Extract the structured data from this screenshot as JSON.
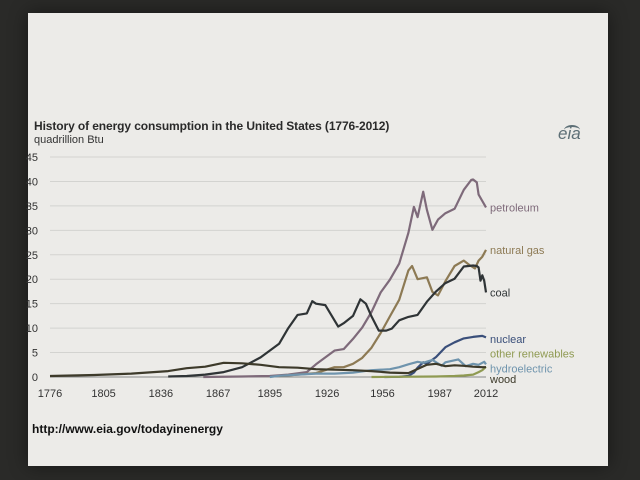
{
  "slide": {
    "logo_text": "eia",
    "url": "http://www.eia.gov/todayinenergy"
  },
  "colors": {
    "petroleum": "#7e6a7a",
    "natural_gas": "#8d7a54",
    "coal": "#2f3436",
    "nuclear": "#3a4f7a",
    "other_renewables": "#8f9a52",
    "hydroelectric": "#6f94ad",
    "wood": "#3d3a2a",
    "grid": "#d3d3d0"
  },
  "chart_data": {
    "type": "line",
    "title": "History of energy consumption in the United States (1776-2012)",
    "ylabel": "quadrillion Btu",
    "xlabel": "",
    "xlim": [
      1776,
      2012
    ],
    "ylim": [
      0,
      45
    ],
    "grid": true,
    "x_ticks": [
      "1776",
      "1805",
      "1836",
      "1867",
      "1895",
      "1926",
      "1956",
      "1987",
      "2012"
    ],
    "y_ticks": [
      "0",
      "5",
      "10",
      "15",
      "20",
      "25",
      "30",
      "35",
      "40",
      "45"
    ],
    "series": [
      {
        "name": "petroleum",
        "color_key": "petroleum",
        "points": [
          [
            1859,
            0
          ],
          [
            1880,
            0.1
          ],
          [
            1895,
            0.2
          ],
          [
            1905,
            0.5
          ],
          [
            1915,
            1.0
          ],
          [
            1920,
            2.6
          ],
          [
            1930,
            5.4
          ],
          [
            1935,
            5.7
          ],
          [
            1940,
            7.8
          ],
          [
            1945,
            10.1
          ],
          [
            1950,
            13.3
          ],
          [
            1955,
            17.3
          ],
          [
            1960,
            19.9
          ],
          [
            1965,
            23.2
          ],
          [
            1970,
            29.5
          ],
          [
            1973,
            34.8
          ],
          [
            1975,
            32.7
          ],
          [
            1978,
            37.9
          ],
          [
            1980,
            34.2
          ],
          [
            1983,
            30.1
          ],
          [
            1986,
            32.2
          ],
          [
            1990,
            33.5
          ],
          [
            1995,
            34.4
          ],
          [
            2000,
            38.3
          ],
          [
            2004,
            40.3
          ],
          [
            2005,
            40.4
          ],
          [
            2007,
            39.8
          ],
          [
            2008,
            37.3
          ],
          [
            2010,
            36.0
          ],
          [
            2012,
            34.7
          ]
        ]
      },
      {
        "name": "natural gas",
        "color_key": "natural_gas",
        "points": [
          [
            1900,
            0.2
          ],
          [
            1910,
            0.5
          ],
          [
            1920,
            0.8
          ],
          [
            1930,
            2.0
          ],
          [
            1935,
            2.0
          ],
          [
            1940,
            2.7
          ],
          [
            1945,
            3.9
          ],
          [
            1950,
            6.0
          ],
          [
            1955,
            9.0
          ],
          [
            1960,
            12.4
          ],
          [
            1965,
            15.8
          ],
          [
            1970,
            21.8
          ],
          [
            1972,
            22.7
          ],
          [
            1975,
            20.0
          ],
          [
            1980,
            20.4
          ],
          [
            1983,
            17.4
          ],
          [
            1986,
            16.7
          ],
          [
            1990,
            19.6
          ],
          [
            1995,
            22.7
          ],
          [
            2000,
            23.8
          ],
          [
            2003,
            22.9
          ],
          [
            2006,
            22.2
          ],
          [
            2008,
            23.8
          ],
          [
            2010,
            24.6
          ],
          [
            2012,
            26.0
          ]
        ]
      },
      {
        "name": "coal",
        "color_key": "coal",
        "points": [
          [
            1840,
            0.1
          ],
          [
            1850,
            0.2
          ],
          [
            1860,
            0.5
          ],
          [
            1870,
            1.0
          ],
          [
            1880,
            2.0
          ],
          [
            1890,
            4.0
          ],
          [
            1900,
            6.8
          ],
          [
            1905,
            10.0
          ],
          [
            1910,
            12.7
          ],
          [
            1915,
            13.0
          ],
          [
            1918,
            15.5
          ],
          [
            1920,
            15.0
          ],
          [
            1925,
            14.7
          ],
          [
            1932,
            10.3
          ],
          [
            1935,
            11.0
          ],
          [
            1940,
            12.5
          ],
          [
            1944,
            15.9
          ],
          [
            1947,
            15.0
          ],
          [
            1950,
            12.4
          ],
          [
            1954,
            9.5
          ],
          [
            1958,
            9.5
          ],
          [
            1961,
            9.9
          ],
          [
            1965,
            11.6
          ],
          [
            1970,
            12.3
          ],
          [
            1975,
            12.7
          ],
          [
            1980,
            15.4
          ],
          [
            1985,
            17.5
          ],
          [
            1990,
            19.2
          ],
          [
            1995,
            20.1
          ],
          [
            2000,
            22.6
          ],
          [
            2005,
            22.8
          ],
          [
            2007,
            22.7
          ],
          [
            2008,
            22.4
          ],
          [
            2009,
            19.7
          ],
          [
            2010,
            20.8
          ],
          [
            2011,
            19.7
          ],
          [
            2012,
            17.3
          ]
        ]
      },
      {
        "name": "nuclear",
        "color_key": "nuclear",
        "points": [
          [
            1957,
            0
          ],
          [
            1965,
            0.04
          ],
          [
            1970,
            0.2
          ],
          [
            1973,
            0.9
          ],
          [
            1975,
            1.9
          ],
          [
            1978,
            3.0
          ],
          [
            1980,
            2.7
          ],
          [
            1985,
            4.1
          ],
          [
            1990,
            6.1
          ],
          [
            1995,
            7.1
          ],
          [
            2000,
            7.9
          ],
          [
            2005,
            8.2
          ],
          [
            2010,
            8.4
          ],
          [
            2012,
            8.1
          ]
        ]
      },
      {
        "name": "other renewables",
        "color_key": "other_renewables",
        "points": [
          [
            1950,
            0
          ],
          [
            1985,
            0.1
          ],
          [
            1995,
            0.2
          ],
          [
            2000,
            0.3
          ],
          [
            2005,
            0.5
          ],
          [
            2008,
            1.0
          ],
          [
            2010,
            1.4
          ],
          [
            2012,
            2.1
          ]
        ]
      },
      {
        "name": "hydroelectric",
        "color_key": "hydroelectric",
        "points": [
          [
            1895,
            0
          ],
          [
            1900,
            0.25
          ],
          [
            1910,
            0.5
          ],
          [
            1920,
            0.7
          ],
          [
            1930,
            0.7
          ],
          [
            1940,
            0.9
          ],
          [
            1950,
            1.4
          ],
          [
            1960,
            1.6
          ],
          [
            1965,
            2.0
          ],
          [
            1970,
            2.6
          ],
          [
            1975,
            3.1
          ],
          [
            1978,
            2.9
          ],
          [
            1983,
            3.5
          ],
          [
            1988,
            2.3
          ],
          [
            1990,
            3.0
          ],
          [
            1997,
            3.6
          ],
          [
            2001,
            2.2
          ],
          [
            2005,
            2.7
          ],
          [
            2008,
            2.5
          ],
          [
            2011,
            3.1
          ],
          [
            2012,
            2.6
          ]
        ]
      },
      {
        "name": "wood",
        "color_key": "wood",
        "points": [
          [
            1776,
            0.2
          ],
          [
            1800,
            0.4
          ],
          [
            1820,
            0.7
          ],
          [
            1840,
            1.2
          ],
          [
            1850,
            1.8
          ],
          [
            1860,
            2.1
          ],
          [
            1870,
            2.9
          ],
          [
            1880,
            2.8
          ],
          [
            1890,
            2.5
          ],
          [
            1900,
            2.0
          ],
          [
            1910,
            1.9
          ],
          [
            1920,
            1.6
          ],
          [
            1930,
            1.5
          ],
          [
            1940,
            1.4
          ],
          [
            1950,
            1.2
          ],
          [
            1960,
            0.9
          ],
          [
            1970,
            0.8
          ],
          [
            1980,
            2.5
          ],
          [
            1985,
            2.7
          ],
          [
            1990,
            2.2
          ],
          [
            1995,
            2.4
          ],
          [
            2000,
            2.3
          ],
          [
            2005,
            2.1
          ],
          [
            2010,
            2.0
          ],
          [
            2012,
            2.0
          ]
        ]
      }
    ]
  }
}
